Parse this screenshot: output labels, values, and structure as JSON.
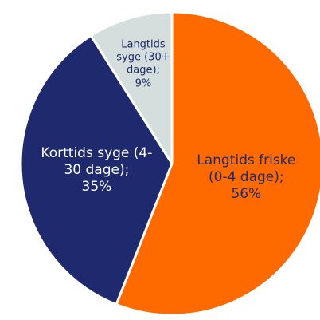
{
  "chart_data": {
    "type": "pie",
    "categories": [
      "Langtids friske (0-4 dage);",
      "Korttids syge (4-30 dage);",
      "Langtids syge (30+ dage);"
    ],
    "values": [
      56,
      35,
      9
    ],
    "value_labels": [
      "56%",
      "35%",
      "9%"
    ],
    "colors": [
      "#ff6a00",
      "#1f2a6e",
      "#d3dedd"
    ]
  }
}
